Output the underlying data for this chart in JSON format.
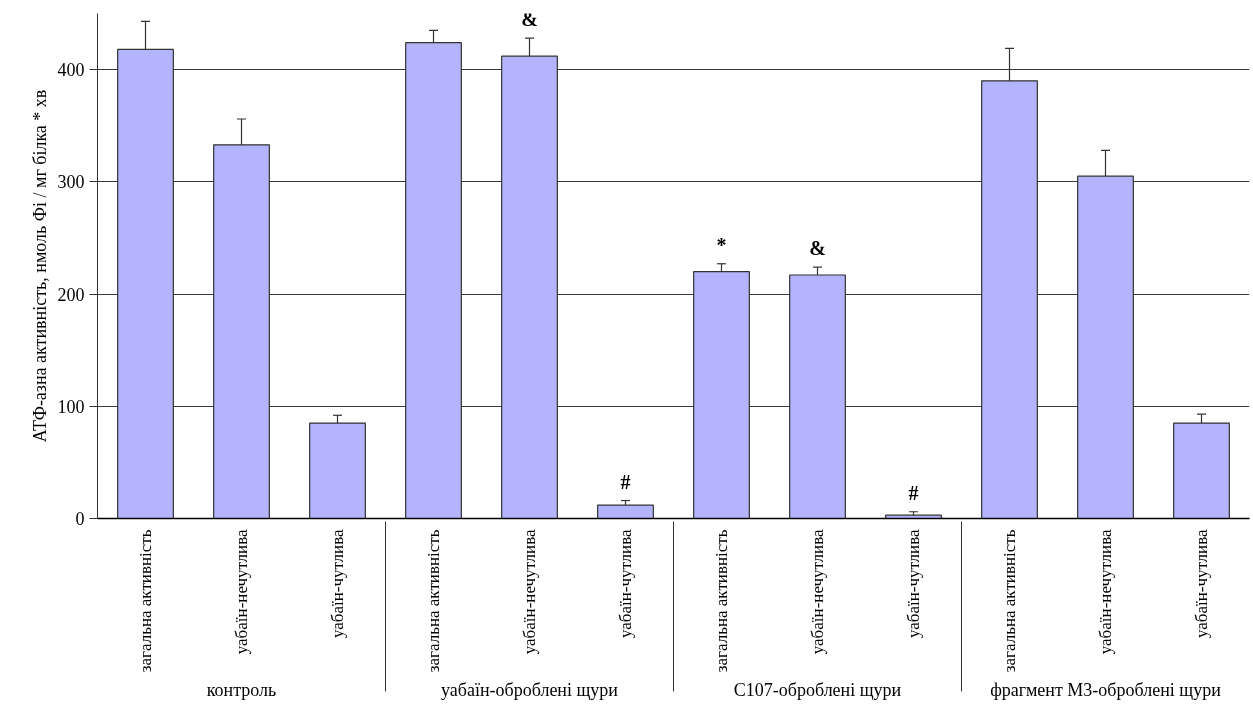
{
  "chart_data": {
    "type": "bar",
    "ylabel": "АТФ-азна активність, нмоль Фі / мг білка * хв",
    "categories": [
      "загальна активність",
      "уабаїн-нечутлива",
      "уабаїн-чутлива",
      "загальна активність",
      "уабаїн-нечутлива",
      "уабаїн-чутлива",
      "загальна активність",
      "уабаїн-нечутлива",
      "уабаїн-чутлива",
      "загальна активність",
      "уабаїн-нечутлива",
      "уабаїн-чутлива"
    ],
    "values": [
      418,
      333,
      85,
      424,
      412,
      12,
      220,
      217,
      3,
      390,
      305,
      85
    ],
    "errors": [
      [
        418,
        443
      ],
      [
        333,
        356
      ],
      [
        85,
        92
      ],
      [
        424,
        435
      ],
      [
        412,
        428
      ],
      [
        12,
        16
      ],
      [
        220,
        227
      ],
      [
        217,
        224
      ],
      [
        3,
        6
      ],
      [
        390,
        419
      ],
      [
        305,
        328
      ],
      [
        85,
        93
      ]
    ],
    "value_labels": [
      null,
      null,
      null,
      null,
      "&",
      "#",
      "*",
      "&",
      "#",
      null,
      null,
      null
    ],
    "color": "#b4b4fc",
    "annotations": [
      "контроль",
      "уабаїн-оброблені щури",
      "C107-оброблені щури",
      "фрагмент M3-оброблені щури"
    ],
    "ylim": [
      0,
      450
    ],
    "yticks": [
      0,
      100,
      200,
      300,
      400
    ],
    "grid": "y"
  }
}
